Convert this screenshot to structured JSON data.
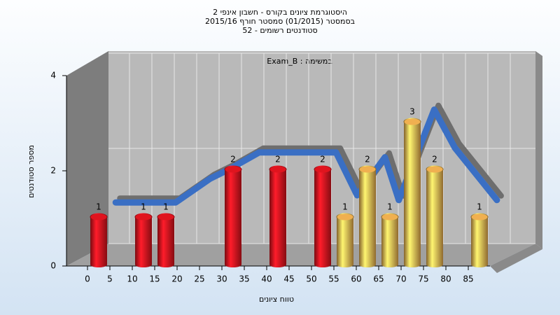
{
  "chart_data": {
    "type": "bar",
    "title": [
      "היסטוגרמת ציונים בקורס - חשבון אינפי 2",
      "בסמסטר  (01/2015)  סמסטר חורף 2015/16",
      "סטודנטים רשומים - 52"
    ],
    "annotation": "במשימה : Exam_B",
    "x_label": "טווח ציונים",
    "y_label": "מספר סטודנטים",
    "x": [
      2.5,
      12.5,
      17.5,
      32.5,
      42.5,
      52.5,
      57.5,
      62.5,
      67.5,
      72.5,
      77.5,
      87.5
    ],
    "values": [
      1,
      1,
      1,
      2,
      2,
      2,
      1,
      2,
      1,
      3,
      2,
      1
    ],
    "colors": [
      "#e0141e",
      "#e0141e",
      "#e0141e",
      "#e0141e",
      "#e0141e",
      "#e0141e",
      "#f0b050",
      "#f0b050",
      "#f0b050",
      "#f0b050",
      "#f0b050",
      "#f0b050"
    ],
    "trend": {
      "x": [
        1.6,
        15,
        22.7,
        27,
        33.6,
        50.8,
        55.5,
        61.7,
        64.8,
        72.7,
        77.3,
        86.7
      ],
      "values": [
        1.1,
        1.1,
        1.6,
        1.8,
        2.15,
        2.15,
        1.25,
        2.05,
        1.15,
        3.05,
        2.25,
        1.15
      ],
      "color": "#3a6fc4"
    },
    "xlim": [
      -5,
      90
    ],
    "xticks": [
      0,
      5,
      10,
      15,
      20,
      25,
      30,
      35,
      40,
      45,
      50,
      55,
      60,
      65,
      70,
      75,
      80,
      85
    ],
    "ylim": [
      0,
      4
    ],
    "yticks": [
      0,
      2,
      4
    ],
    "grid": true
  }
}
